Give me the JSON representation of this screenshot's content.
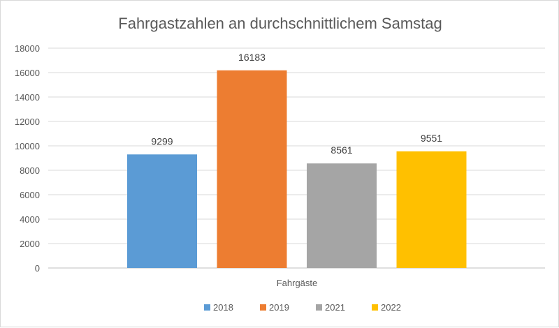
{
  "chart_data": {
    "type": "bar",
    "title": "Fahrgastzahlen an durchschnittlichem Samstag",
    "categories": [
      "Fahrgäste"
    ],
    "series": [
      {
        "name": "2018",
        "values": [
          9299
        ],
        "color": "#5B9BD5"
      },
      {
        "name": "2019",
        "values": [
          16183
        ],
        "color": "#ED7D31"
      },
      {
        "name": "2021",
        "values": [
          8561
        ],
        "color": "#A5A5A5"
      },
      {
        "name": "2022",
        "values": [
          9551
        ],
        "color": "#FFC000"
      }
    ],
    "ylim": [
      0,
      18000
    ],
    "yticks": [
      0,
      2000,
      4000,
      6000,
      8000,
      10000,
      12000,
      14000,
      16000,
      18000
    ],
    "grid": true,
    "data_labels": true,
    "legend_position": "bottom"
  }
}
